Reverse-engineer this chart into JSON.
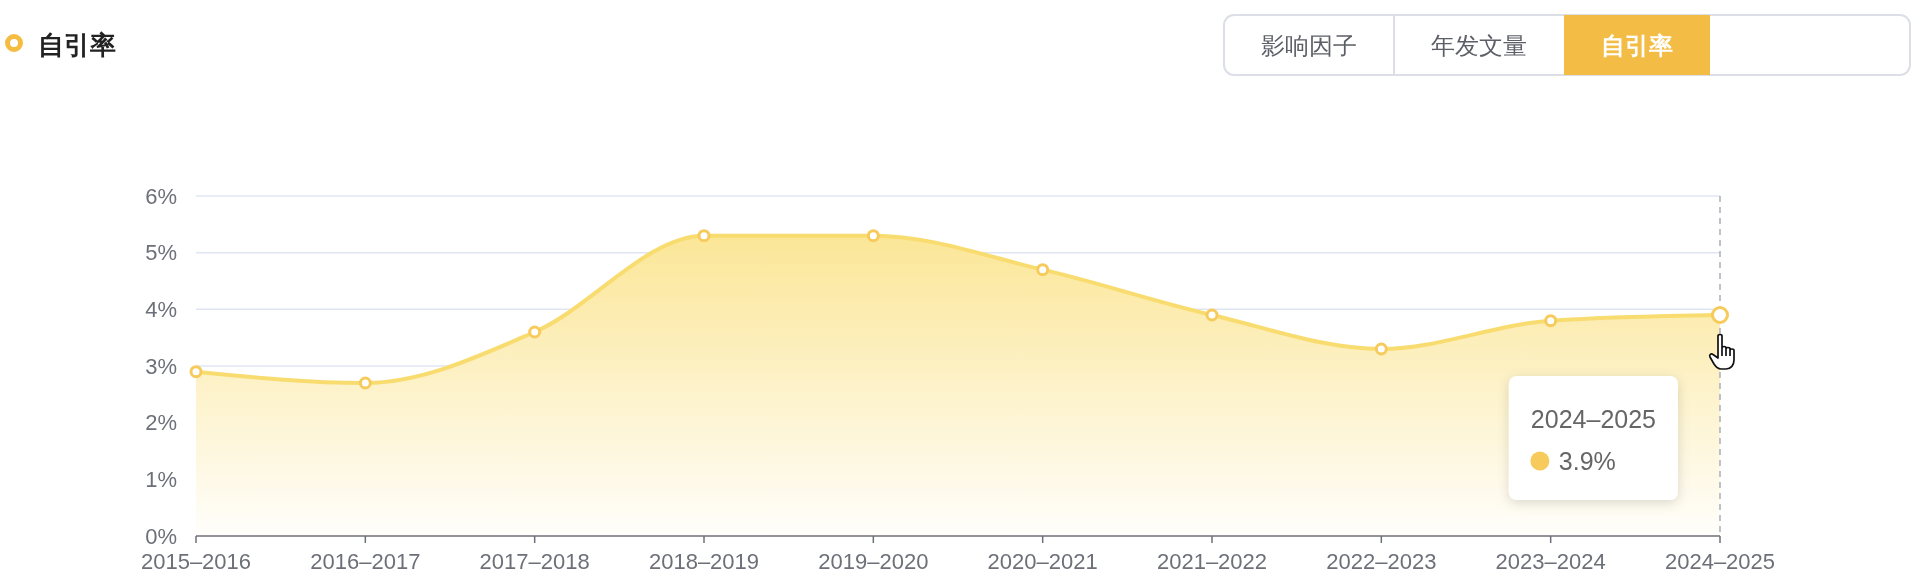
{
  "chart_data": {
    "type": "area",
    "title": "自引率",
    "categories": [
      "2015–2016",
      "2016–2017",
      "2017–2018",
      "2018–2019",
      "2019–2020",
      "2020–2021",
      "2021–2022",
      "2022–2023",
      "2023–2024",
      "2024–2025"
    ],
    "series": [
      {
        "color": "#f9dc6f",
        "values": [
          2.9,
          2.7,
          3.6,
          5.3,
          5.3,
          4.7,
          3.9,
          3.3,
          3.8,
          3.9
        ]
      }
    ],
    "ylim": [
      0,
      6
    ],
    "yticks": [
      {
        "value": 0,
        "label": "0%"
      },
      {
        "value": 1,
        "label": "1%"
      },
      {
        "value": 2,
        "label": "2%"
      },
      {
        "value": 3,
        "label": "3%"
      },
      {
        "value": 4,
        "label": "4%"
      },
      {
        "value": 5,
        "label": "5%"
      },
      {
        "value": 6,
        "label": "6%"
      }
    ],
    "grid": "y",
    "marker": "circle",
    "ref_lines": [
      {
        "axis": "x",
        "value": "2024–2025",
        "color": "#a9aeb8",
        "line_style": "dashed"
      }
    ],
    "annotations": [
      "影响因子",
      "年发文量",
      "自引率",
      "2024–2025",
      "3.9%"
    ]
  }
}
